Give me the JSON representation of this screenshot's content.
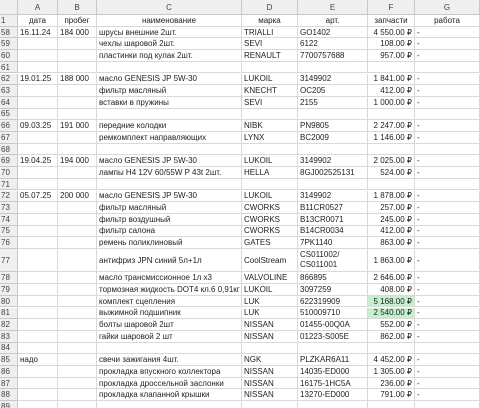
{
  "columns": [
    "A",
    "B",
    "C",
    "D",
    "E",
    "F",
    "G"
  ],
  "rows": [
    {
      "num": 1,
      "header": true,
      "cells": {
        "A": "дата",
        "B": "пробег",
        "C": "наименование",
        "D": "марка",
        "E": "арт.",
        "F": "запчасти",
        "G": "работа"
      }
    },
    {
      "num": 58,
      "cells": {
        "A": "16.11.24",
        "B": "184 000",
        "C": "шрусы внешние 2шт.",
        "D": "TRIALLI",
        "E": "GO1402",
        "F": "4 550.00 ₽",
        "G": "-"
      }
    },
    {
      "num": 59,
      "cells": {
        "C": "чехлы шаровой 2шт.",
        "D": "SEVI",
        "E": "6122",
        "F": "108.00 ₽",
        "G": "-"
      }
    },
    {
      "num": 60,
      "cells": {
        "C": "пластинки под кулак 2шт.",
        "D": "RENAULT",
        "E": "7700757688",
        "F": "957.00 ₽",
        "G": "-"
      }
    },
    {
      "num": 61,
      "cells": {}
    },
    {
      "num": 62,
      "cells": {
        "A": "19.01.25",
        "B": "188 000",
        "C": "масло GENESIS JP 5W-30",
        "D": "LUKOIL",
        "E": "3149902",
        "F": "1 841.00 ₽",
        "G": "-"
      }
    },
    {
      "num": 63,
      "cells": {
        "C": "фильтр масляный",
        "D": "KNECHT",
        "E": "OC205",
        "F": "412.00 ₽",
        "G": "-"
      }
    },
    {
      "num": 64,
      "cells": {
        "C": "вставки в пружины",
        "D": "SEVI",
        "E": "2155",
        "F": "1 000.00 ₽",
        "G": "-"
      }
    },
    {
      "num": 65,
      "cells": {}
    },
    {
      "num": 66,
      "cells": {
        "A": "09.03.25",
        "B": "191 000",
        "C": "передние колодки",
        "D": "NIBK",
        "E": "PN9805",
        "F": "2 247.00 ₽",
        "G": "-"
      }
    },
    {
      "num": 67,
      "cells": {
        "C": "ремкомплект направляющих",
        "D": "LYNX",
        "E": "BC2009",
        "F": "1 146.00 ₽",
        "G": "-"
      }
    },
    {
      "num": 68,
      "cells": {}
    },
    {
      "num": 69,
      "cells": {
        "A": "19.04.25",
        "B": "194 000",
        "C": "масло GENESIS JP 5W-30",
        "D": "LUKOIL",
        "E": "3149902",
        "F": "2 025.00 ₽",
        "G": "-"
      }
    },
    {
      "num": 70,
      "cells": {
        "C": "лампы H4 12V 60/55W P 43t  2шт.",
        "D": "HELLA",
        "E": "8GJ002525131",
        "F": "524.00 ₽",
        "G": "-"
      }
    },
    {
      "num": 71,
      "cells": {}
    },
    {
      "num": 72,
      "cells": {
        "A": "05.07.25",
        "B": "200 000",
        "C": "масло GENESIS JP 5W-30",
        "D": "LUKOIL",
        "E": "3149902",
        "F": "1 878.00 ₽",
        "G": "-"
      }
    },
    {
      "num": 73,
      "cells": {
        "C": "фильтр масляный",
        "D": "CWORKS",
        "E": "B11CR0527",
        "F": "257.00 ₽",
        "G": "-"
      }
    },
    {
      "num": 74,
      "cells": {
        "C": "фильтр воздушный",
        "D": "CWORKS",
        "E": "B13CR0071",
        "F": "245.00 ₽",
        "G": "-"
      }
    },
    {
      "num": 75,
      "cells": {
        "C": "фильтр салона",
        "D": "CWORKS",
        "E": "B14CR0034",
        "F": "412.00 ₽",
        "G": "-"
      }
    },
    {
      "num": 76,
      "cells": {
        "C": "ремень поликлиновый",
        "D": "GATES",
        "E": "7PK1140",
        "F": "863.00 ₽",
        "G": "-"
      }
    },
    {
      "num": 77,
      "tall": true,
      "cells": {
        "C": "антифриз JPN синий 5л+1л",
        "D": "CoolStream",
        "E": "CS011002/ CS011001",
        "F": "1 863.00 ₽",
        "G": "-"
      }
    },
    {
      "num": 78,
      "cells": {
        "C": "масло трансмиссионное 1л х3",
        "D": "VALVOLINE",
        "E": "866895",
        "F": "2 646.00 ₽",
        "G": "-"
      }
    },
    {
      "num": 79,
      "cells": {
        "C": "тормозная жидкость DOT4 кл.6 0,91кг",
        "D": "LUKOIL",
        "E": "3097259",
        "F": "408.00 ₽",
        "G": "-"
      }
    },
    {
      "num": 80,
      "highlight": [
        "F"
      ],
      "cells": {
        "C": "комплект сцепления",
        "D": "LUK",
        "E": "622319909",
        "F": "5 168.00 ₽",
        "G": "-"
      }
    },
    {
      "num": 81,
      "highlight": [
        "F"
      ],
      "cells": {
        "C": "выжимной подшипник",
        "D": "LUK",
        "E": "510009710",
        "F": "2 540.00 ₽",
        "G": "-"
      }
    },
    {
      "num": 82,
      "cells": {
        "C": "болты шаровой 2шт",
        "D": "NISSAN",
        "E": "01455-00Q0A",
        "F": "552.00 ₽",
        "G": "-"
      }
    },
    {
      "num": 83,
      "cells": {
        "C": "гайки шаровой 2 шт",
        "D": "NISSAN",
        "E": "01223-S005E",
        "F": "862.00 ₽",
        "G": "-"
      }
    },
    {
      "num": 84,
      "cells": {}
    },
    {
      "num": 85,
      "cells": {
        "A": "надо",
        "C": "свечи зажигания 4шт.",
        "D": "NGK",
        "E": "PLZKAR6A11",
        "F": "4 452.00 ₽",
        "G": "-"
      }
    },
    {
      "num": 86,
      "cells": {
        "C": "прокладка впускного коллектора",
        "D": "NISSAN",
        "E": "14035-ED000",
        "F": "1 305.00 ₽",
        "G": "-"
      }
    },
    {
      "num": 87,
      "cells": {
        "C": "прокладка дроссельной заслонки",
        "D": "NISSAN",
        "E": "16175-1HC5A",
        "F": "236.00 ₽",
        "G": "-"
      }
    },
    {
      "num": 88,
      "cells": {
        "C": "прокладка клапанной крышки",
        "D": "NISSAN",
        "E": "13270-ED000",
        "F": "791.00 ₽",
        "G": "-"
      }
    },
    {
      "num": 89,
      "cells": {}
    }
  ]
}
